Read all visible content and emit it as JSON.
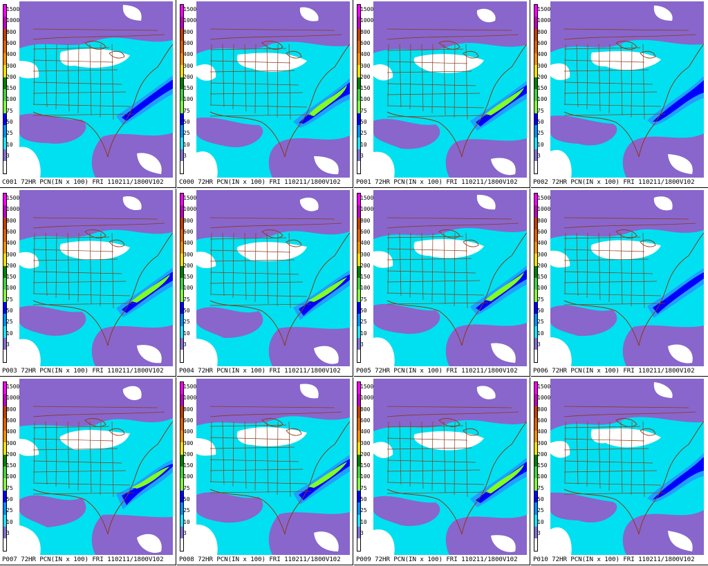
{
  "legend": {
    "ticks": [
      "1500",
      "1000",
      "800",
      "600",
      "400",
      "300",
      "200",
      "150",
      "100",
      "75",
      "50",
      "25",
      "10",
      "3"
    ],
    "colors": [
      "#ff00ff",
      "#c000c0",
      "#c04000",
      "#e06000",
      "#f09000",
      "#f0e000",
      "#008000",
      "#40d040",
      "#80ff40",
      "#0000ff",
      "#0090ff",
      "#20e0ff",
      "#8070d0",
      "#ffffff"
    ]
  },
  "map_colors": {
    "none": "#ffffff",
    "light": "#8866cc",
    "medium": "#00e0f0",
    "heavy": "#20a0ff",
    "very_heavy": "#0000ff",
    "extreme": "#80ff20",
    "borders": "#8b3a1a"
  },
  "panels": [
    {
      "caption": "C001  72HR  PCN(IN x 100)  FRI  110211/1800V102"
    },
    {
      "caption": "C000  72HR  PCN(IN x 100)  FRI  110211/1800V102"
    },
    {
      "caption": "P001  72HR  PCN(IN x 100)  FRI  110211/1800V102"
    },
    {
      "caption": "P002  72HR  PCN(IN x 100)  FRI  110211/1800V102"
    },
    {
      "caption": "P003  72HR  PCN(IN x 100)  FRI  110211/1800V102"
    },
    {
      "caption": "P004  72HR  PCN(IN x 100)  FRI  110211/1800V102"
    },
    {
      "caption": "P005  72HR  PCN(IN x 100)  FRI  110211/1800V102"
    },
    {
      "caption": "P006  72HR  PCN(IN x 100)  FRI  110211/1800V102"
    },
    {
      "caption": "P007  72HR  PCN(IN x 100)  FRI  110211/1800V102"
    },
    {
      "caption": "P008  72HR  PCN(IN x 100)  FRI  110211/1800V102"
    },
    {
      "caption": "P009  72HR  PCN(IN x 100)  FRI  110211/1800V102"
    },
    {
      "caption": "P010  72HR  PCN(IN x 100)  FRI  110211/1800V102"
    }
  ]
}
